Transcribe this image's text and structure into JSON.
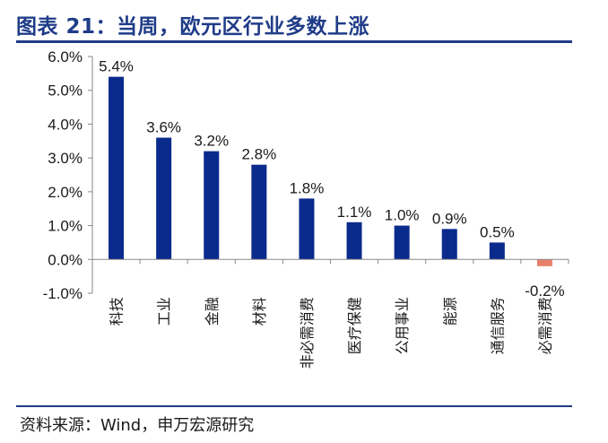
{
  "header": {
    "title": "图表 21：当周，欧元区行业多数上涨"
  },
  "footer": {
    "source": "资料来源：Wind，申万宏源研究"
  },
  "chart_data": {
    "type": "bar",
    "categories": [
      "科技",
      "工业",
      "金融",
      "材料",
      "非必需消费",
      "医疗保健",
      "公用事业",
      "能源",
      "通信服务",
      "必需消费"
    ],
    "values": [
      5.4,
      3.6,
      3.2,
      2.8,
      1.8,
      1.1,
      1.0,
      0.9,
      0.5,
      -0.2
    ],
    "data_labels": [
      "5.4%",
      "3.6%",
      "3.2%",
      "2.8%",
      "1.8%",
      "1.1%",
      "1.0%",
      "0.9%",
      "0.5%",
      "-0.2%"
    ],
    "yticks": [
      6.0,
      5.0,
      4.0,
      3.0,
      2.0,
      1.0,
      0.0,
      -1.0
    ],
    "ytick_labels": [
      "6.0%",
      "5.0%",
      "4.0%",
      "3.0%",
      "2.0%",
      "1.0%",
      "0.0%",
      "-1.0%"
    ],
    "ylim": [
      -1.0,
      6.0
    ],
    "grid": false,
    "legend": "none",
    "colors": {
      "positive": "#0a2a8c",
      "negative": "#e8806a",
      "axis": "#8a8a8a"
    }
  }
}
